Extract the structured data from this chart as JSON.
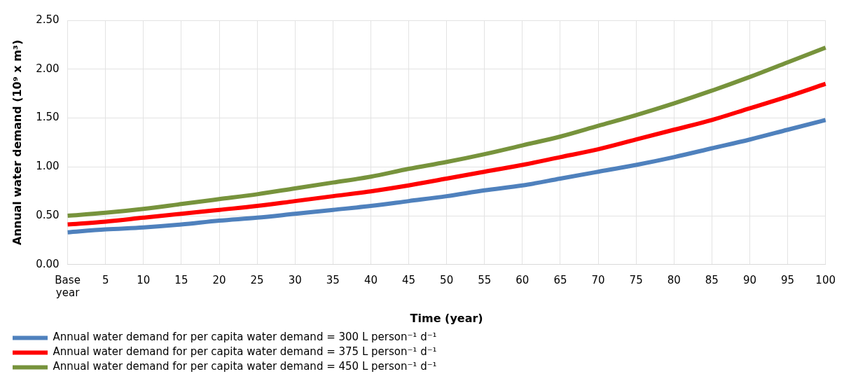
{
  "chart_data": {
    "type": "line",
    "xlabel": "Time (year)",
    "ylabel": "Annual water demand (10⁹ x m³)",
    "categories": [
      "Base year",
      "5",
      "10",
      "15",
      "20",
      "25",
      "30",
      "35",
      "40",
      "45",
      "50",
      "55",
      "60",
      "65",
      "70",
      "75",
      "80",
      "85",
      "90",
      "95",
      "100"
    ],
    "series": [
      {
        "name": "Annual water demand for per capita water demand = 300 L person⁻¹ d⁻¹",
        "color": "#4f81bd",
        "values": [
          0.33,
          0.36,
          0.38,
          0.41,
          0.45,
          0.48,
          0.52,
          0.56,
          0.6,
          0.65,
          0.7,
          0.76,
          0.81,
          0.88,
          0.95,
          1.02,
          1.1,
          1.19,
          1.28,
          1.38,
          1.48
        ]
      },
      {
        "name": "Annual water demand for per capita water demand = 375 L person⁻¹ d⁻¹",
        "color": "#ff0000",
        "values": [
          0.41,
          0.44,
          0.48,
          0.52,
          0.56,
          0.6,
          0.65,
          0.7,
          0.75,
          0.81,
          0.88,
          0.95,
          1.02,
          1.1,
          1.18,
          1.28,
          1.38,
          1.48,
          1.6,
          1.72,
          1.85
        ]
      },
      {
        "name": "Annual water demand for per capita water demand = 450 L person⁻¹ d⁻¹",
        "color": "#77933c",
        "values": [
          0.5,
          0.53,
          0.57,
          0.62,
          0.67,
          0.72,
          0.78,
          0.84,
          0.9,
          0.98,
          1.05,
          1.13,
          1.22,
          1.31,
          1.42,
          1.53,
          1.65,
          1.78,
          1.92,
          2.07,
          2.22
        ]
      }
    ],
    "ylim": [
      0,
      2.5
    ],
    "yticks": [
      {
        "value": 0,
        "label": "0.00"
      },
      {
        "value": 0.5,
        "label": "0.50"
      },
      {
        "value": 1,
        "label": "1.00"
      },
      {
        "value": 1.5,
        "label": "1.50"
      },
      {
        "value": 2,
        "label": "2.00"
      },
      {
        "value": 2.5,
        "label": "2.50"
      }
    ],
    "grid": true,
    "legend": "bottom",
    "marker": "none",
    "line_style": "solid"
  }
}
